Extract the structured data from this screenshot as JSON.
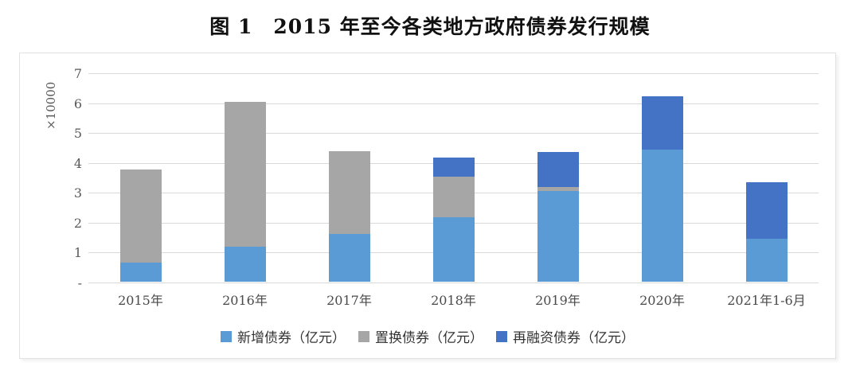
{
  "chart_data": {
    "type": "bar",
    "stacked": true,
    "title": "图 1　2015 年至今各类地方政府债券发行规模",
    "ylabel": "×10000",
    "xlabel": "",
    "unit_note": "values in 万亿元 (axis ×10000, series unit 亿元)",
    "categories": [
      "2015年",
      "2016年",
      "2017年",
      "2018年",
      "2019年",
      "2020年",
      "2021年1-6月"
    ],
    "series": [
      {
        "name": "新增债券（亿元）",
        "color": "#5B9BD5",
        "values": [
          0.63,
          1.17,
          1.6,
          2.15,
          3.03,
          4.43,
          1.45
        ]
      },
      {
        "name": "置换债券（亿元）",
        "color": "#A6A6A6",
        "values": [
          3.12,
          4.85,
          2.77,
          1.37,
          0.14,
          0.0,
          0.0
        ]
      },
      {
        "name": "再融资债券（亿元）",
        "color": "#4472C4",
        "values": [
          0.0,
          0.0,
          0.0,
          0.63,
          1.17,
          1.77,
          1.87
        ]
      }
    ],
    "ylim": [
      0,
      7
    ],
    "ytick_labels": [
      "-",
      "1",
      "2",
      "3",
      "4",
      "5",
      "6",
      "7"
    ],
    "grid": true,
    "legend_position": "bottom",
    "colors": {
      "gridline": "#D9D9D9",
      "frame_border": "#E2E2E2",
      "axis_text": "#595959",
      "title_text": "#111111"
    }
  }
}
